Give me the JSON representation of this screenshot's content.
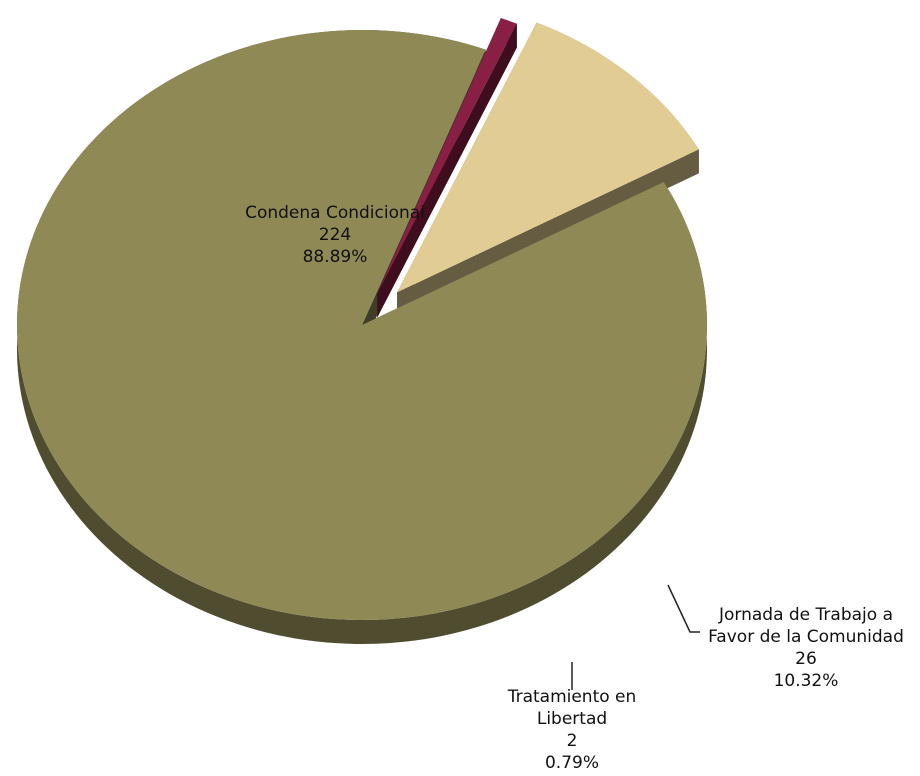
{
  "chart_data": {
    "type": "pie",
    "title": "",
    "exploded": true,
    "three_d": true,
    "slices": [
      {
        "name": "Condena Condicional",
        "value": 224,
        "percent": "88.89%",
        "value_label": "224",
        "color": "#8f8a55"
      },
      {
        "name": "Tratamiento en Libertad",
        "value": 2,
        "percent": "0.79%",
        "value_label": "2",
        "color": "#8a1f45"
      },
      {
        "name": "Jornada de Trabajo a Favor de la Comunidad",
        "value": 26,
        "percent": "10.32%",
        "value_label": "26",
        "color": "#e1cd93"
      }
    ],
    "labels": {
      "condena": {
        "line1": "Condena Condicional",
        "value": "224",
        "percent": "88.89%"
      },
      "tratamiento": {
        "line1": "Tratamiento en",
        "line2": "Libertad",
        "value": "2",
        "percent": "0.79%"
      },
      "jornada": {
        "line1": "Jornada de Trabajo a",
        "line2": "Favor de la Comunidad",
        "value": "26",
        "percent": "10.32%"
      }
    }
  }
}
